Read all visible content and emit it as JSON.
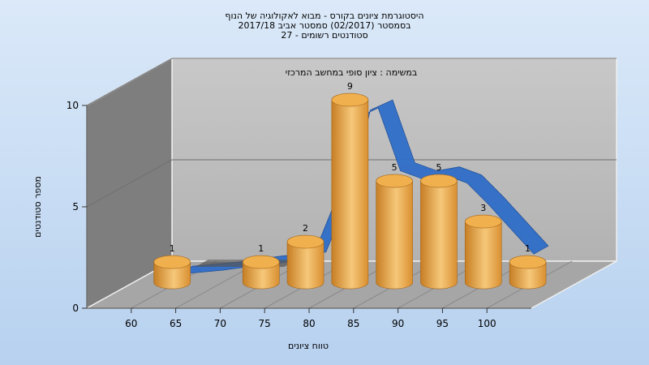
{
  "chart_data": {
    "type": "bar",
    "title_lines": [
      "היסטוגרמת ציונים בקורס - מבוא לאקולוגיה של הנוף",
      "בסמסטר  (02/2017)  סמסטר אביב 2017/18",
      "סטודנטים רשומים - 27"
    ],
    "subtitle": "במשימה : ציון סופי במחשב המרכזי",
    "xlabel": "טווח ציונים",
    "ylabel": "מספר סטודנטים",
    "x_ticks": [
      "60",
      "65",
      "70",
      "75",
      "80",
      "85",
      "90",
      "95",
      "100"
    ],
    "y_ticks": [
      "0",
      "5",
      "10"
    ],
    "ylim": [
      0,
      10
    ],
    "bars": [
      {
        "x": 57.5,
        "value": 1,
        "label": "1"
      },
      {
        "x": 67.5,
        "value": 1,
        "label": "1"
      },
      {
        "x": 72.5,
        "value": 2,
        "label": "2"
      },
      {
        "x": 77.5,
        "value": 9,
        "label": "9"
      },
      {
        "x": 82.5,
        "value": 5,
        "label": "5"
      },
      {
        "x": 87.5,
        "value": 5,
        "label": "5"
      },
      {
        "x": 92.5,
        "value": 3,
        "label": "3"
      },
      {
        "x": 97.5,
        "value": 1,
        "label": "1"
      }
    ],
    "curve": {
      "x": [
        60,
        65,
        70,
        75,
        77.5,
        80,
        82.5,
        85,
        87.5,
        90,
        92.5,
        95,
        97.5,
        100
      ],
      "y": [
        0.4,
        0.6,
        0.9,
        1.1,
        3.8,
        8.1,
        8.6,
        5.5,
        5.1,
        5.3,
        4.9,
        3.8,
        2.6,
        1.4
      ]
    },
    "colors": {
      "bar": "#e09a38",
      "bar_light": "#f6c87a",
      "curve": "#2f6ec8",
      "back_wall": "#bcbcbc",
      "side_wall": "#7e7e7e",
      "floor": "#a6a6a6"
    }
  }
}
